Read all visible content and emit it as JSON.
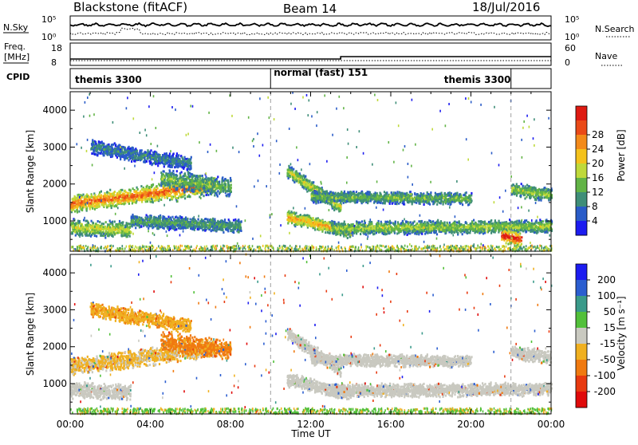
{
  "header": {
    "radar": "Blackstone (fitACF)",
    "beam": "Beam 14",
    "date": "18/Jul/2016"
  },
  "labels": {
    "nsky": "N.Sky",
    "nsky_scale_hi": "10^5",
    "nsky_scale_lo": "10^0",
    "nsearch": "N.Search",
    "nsearch_scale_hi": "10^5",
    "nsearch_scale_lo": "10^0",
    "freq_line1": "Freq.",
    "freq_line2": "[MHz]",
    "freq_hi": "18",
    "freq_lo": "8",
    "nave": "Nave",
    "nave_hi": "60",
    "nave_lo": "0",
    "cpid": "CPID"
  },
  "cpid_segments": [
    {
      "start_h": 0.0,
      "end_h": 10.0,
      "label": "themis 3300"
    },
    {
      "start_h": 10.0,
      "end_h": 22.0,
      "label": "normal (fast) 151"
    },
    {
      "start_h": 22.0,
      "end_h": 24.0,
      "label": "themis 3300"
    }
  ],
  "chart_data": [
    {
      "type": "heatmap",
      "name": "power",
      "ylabel": "Slant Range [km]",
      "xlabel": "",
      "ylim": [
        180,
        4500
      ],
      "xlim_h": [
        0,
        24
      ],
      "yticks": [
        1000,
        2000,
        3000,
        4000
      ],
      "colorbar": {
        "label": "Power [dB]",
        "ticks": [
          "4",
          "8",
          "12",
          "16",
          "20",
          "24",
          "28"
        ],
        "colors": [
          "#1c1cf0",
          "#2a5cc8",
          "#3f8e78",
          "#62b446",
          "#bfd93a",
          "#f4c21c",
          "#f38a1a",
          "#ea4a18",
          "#de1a12"
        ]
      },
      "bands": [
        {
          "start_h": 0.0,
          "end_h": 7.2,
          "r_start": 1450,
          "r_end": 1960,
          "width": 260,
          "value": 24
        },
        {
          "start_h": 0.0,
          "end_h": 3.0,
          "r_start": 820,
          "r_end": 750,
          "width": 240,
          "value": 16
        },
        {
          "start_h": 3.0,
          "end_h": 8.5,
          "r_start": 1000,
          "r_end": 850,
          "width": 200,
          "value": 10
        },
        {
          "start_h": 4.5,
          "end_h": 8.0,
          "r_start": 2150,
          "r_end": 1900,
          "width": 300,
          "value": 12
        },
        {
          "start_h": 1.0,
          "end_h": 6.0,
          "r_start": 3000,
          "r_end": 2550,
          "width": 220,
          "value": 8
        },
        {
          "start_h": 10.8,
          "end_h": 13.5,
          "r_start": 2350,
          "r_end": 1350,
          "width": 200,
          "value": 16
        },
        {
          "start_h": 10.8,
          "end_h": 14.0,
          "r_start": 1100,
          "r_end": 700,
          "width": 200,
          "value": 20
        },
        {
          "start_h": 12.0,
          "end_h": 20.0,
          "r_start": 1650,
          "r_end": 1600,
          "width": 180,
          "value": 12
        },
        {
          "start_h": 13.0,
          "end_h": 24.0,
          "r_start": 800,
          "r_end": 850,
          "width": 200,
          "value": 14
        },
        {
          "start_h": 21.5,
          "end_h": 22.5,
          "r_start": 600,
          "r_end": 500,
          "width": 220,
          "value": 28
        },
        {
          "start_h": 22.0,
          "end_h": 24.0,
          "r_start": 1850,
          "r_end": 1700,
          "width": 200,
          "value": 14
        }
      ]
    },
    {
      "type": "heatmap",
      "name": "velocity",
      "ylabel": "Slant Range [km]",
      "xlabel": "Time UT",
      "ylim": [
        180,
        4500
      ],
      "xlim_h": [
        0,
        24
      ],
      "yticks": [
        1000,
        2000,
        3000,
        4000
      ],
      "xticks": [
        "00:00",
        "04:00",
        "08:00",
        "12:00",
        "16:00",
        "20:00",
        "00:00"
      ],
      "colorbar": {
        "label": "Velocity [m s^-1]",
        "ticks": [
          "200",
          "100",
          "50",
          "15",
          "-15",
          "-50",
          "-100",
          "-200"
        ],
        "colors": [
          "#1c1cf0",
          "#2b5ed0",
          "#3a9a8a",
          "#52c03a",
          "#c9c9c0",
          "#f0b020",
          "#f07a10",
          "#e83a10",
          "#e00a0a"
        ]
      },
      "bands": [
        {
          "start_h": 0.0,
          "end_h": 7.2,
          "r_start": 1450,
          "r_end": 1960,
          "width": 260,
          "value": -20
        },
        {
          "start_h": 0.0,
          "end_h": 3.0,
          "r_start": 820,
          "r_end": 750,
          "width": 240,
          "value": 0
        },
        {
          "start_h": 4.5,
          "end_h": 8.0,
          "r_start": 2150,
          "r_end": 1900,
          "width": 300,
          "value": -60
        },
        {
          "start_h": 1.0,
          "end_h": 6.0,
          "r_start": 3000,
          "r_end": 2550,
          "width": 220,
          "value": -40
        },
        {
          "start_h": 10.8,
          "end_h": 13.5,
          "r_start": 2350,
          "r_end": 1350,
          "width": 200,
          "value": 0
        },
        {
          "start_h": 10.8,
          "end_h": 14.0,
          "r_start": 1100,
          "r_end": 700,
          "width": 200,
          "value": 0
        },
        {
          "start_h": 12.0,
          "end_h": 20.0,
          "r_start": 1650,
          "r_end": 1600,
          "width": 180,
          "value": 0
        },
        {
          "start_h": 13.0,
          "end_h": 24.0,
          "r_start": 800,
          "r_end": 850,
          "width": 200,
          "value": 0
        },
        {
          "start_h": 22.0,
          "end_h": 24.0,
          "r_start": 1850,
          "r_end": 1700,
          "width": 200,
          "value": 0
        }
      ]
    }
  ]
}
